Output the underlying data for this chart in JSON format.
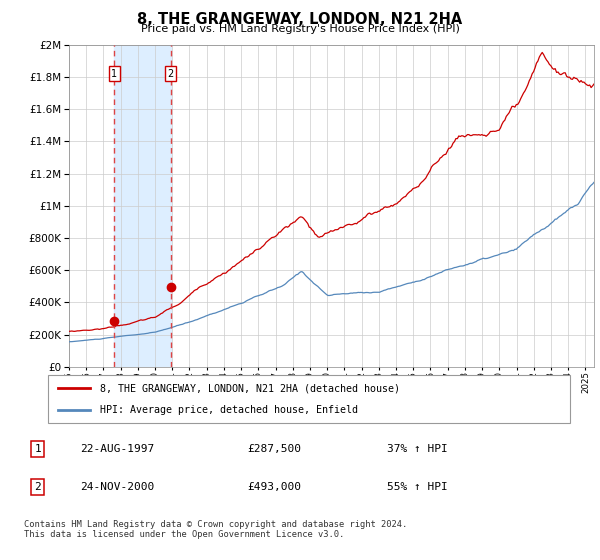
{
  "title": "8, THE GRANGEWAY, LONDON, N21 2HA",
  "subtitle": "Price paid vs. HM Land Registry's House Price Index (HPI)",
  "footer": "Contains HM Land Registry data © Crown copyright and database right 2024.\nThis data is licensed under the Open Government Licence v3.0.",
  "legend_line1": "8, THE GRANGEWAY, LONDON, N21 2HA (detached house)",
  "legend_line2": "HPI: Average price, detached house, Enfield",
  "transaction1_date": "22-AUG-1997",
  "transaction1_price": "£287,500",
  "transaction1_hpi": "37% ↑ HPI",
  "transaction2_date": "24-NOV-2000",
  "transaction2_price": "£493,000",
  "transaction2_hpi": "55% ↑ HPI",
  "sale1_year": 1997.64,
  "sale1_price": 287500,
  "sale2_year": 2000.9,
  "sale2_price": 493000,
  "red_line_color": "#cc0000",
  "blue_line_color": "#5588bb",
  "marker_color": "#cc0000",
  "dashed_line_color": "#dd4444",
  "highlight_color": "#ddeeff",
  "grid_color": "#cccccc",
  "ylim_max": 2000000,
  "xlim_start": 1995.0,
  "xlim_end": 2025.5
}
